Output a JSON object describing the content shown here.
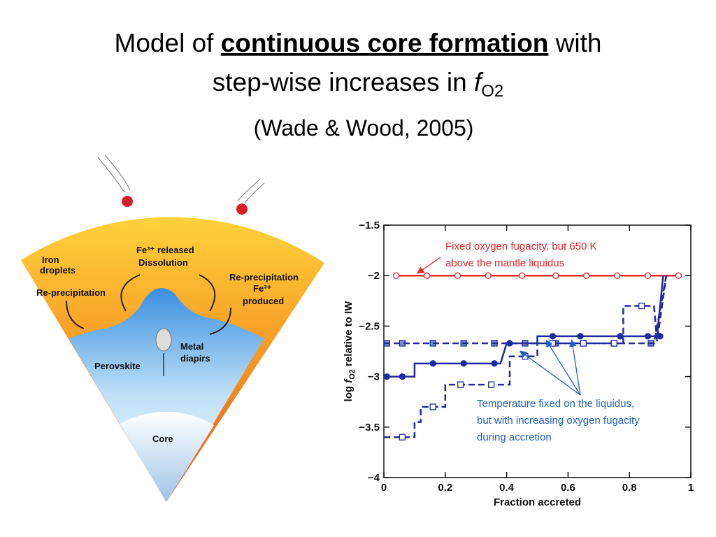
{
  "title": {
    "line1_start": "Model of ",
    "line1_emph": "continuous core formation",
    "line1_end": " with",
    "line2_start": "step-wise increases in ",
    "line2_f": "f",
    "line2_sub": "O2"
  },
  "subtitle": "(Wade & Wood, 2005)",
  "diagram": {
    "labels": [
      "Iron",
      "droplets",
      "Fe³⁺ released",
      "Dissolution",
      "Re-precipitation",
      "Re-precipitation",
      "Fe³⁺",
      "produced",
      "Metal",
      "diapirs",
      "Perovskite",
      "Core"
    ]
  },
  "chart_data": {
    "type": "line",
    "xlabel": "Fraction accreted",
    "ylabel": {
      "start": "log ",
      "f": "f",
      "sub": "O2",
      "end": " relative to IW"
    },
    "xlim": [
      0,
      1
    ],
    "xticks": [
      0,
      0.2,
      0.4,
      0.6,
      0.8,
      1
    ],
    "ylim": [
      -4,
      -1.5
    ],
    "yticks": [
      {
        "value": -4,
        "label": "−4"
      },
      {
        "value": -3.5,
        "label": "−3.5"
      },
      {
        "value": -3,
        "label": "−3"
      },
      {
        "value": -2.5,
        "label": "−2.5"
      },
      {
        "value": -2,
        "label": "−2"
      },
      {
        "value": -1.5,
        "label": "−1.5"
      }
    ],
    "series": [
      {
        "color": "#e8262b",
        "dashed": false,
        "marker": "open-circle",
        "x": [
          0.04,
          0.14,
          0.24,
          0.34,
          0.45,
          0.56,
          0.66,
          0.76,
          0.86,
          0.96
        ],
        "values": [
          -2,
          -2,
          -2,
          -2,
          -2,
          -2,
          -2,
          -2,
          -2,
          -2
        ]
      },
      {
        "color": "#1f2aa0",
        "dashed": false,
        "marker": "filled-circle",
        "x": [
          0,
          0.1,
          0.1,
          0.38,
          0.4,
          0.5,
          0.5,
          0.89,
          0.91
        ],
        "values": [
          -3,
          -3,
          -2.87,
          -2.87,
          -2.67,
          -2.67,
          -2.6,
          -2.6,
          -2
        ],
        "marker_x": [
          0.01,
          0.06,
          0.16,
          0.26,
          0.36,
          0.41,
          0.55,
          0.64,
          0.77,
          0.86,
          0.9
        ],
        "marker_values": [
          -3,
          -3,
          -2.87,
          -2.87,
          -2.87,
          -2.67,
          -2.6,
          -2.6,
          -2.6,
          -2.6,
          -2.6
        ]
      },
      {
        "color": "#1f2aa0",
        "dashed": true,
        "marker": "half-square",
        "x": [
          0,
          0.88,
          0.92
        ],
        "values": [
          -2.67,
          -2.67,
          -2
        ],
        "marker_x": [
          0.01,
          0.06,
          0.16,
          0.26,
          0.36,
          0.46,
          0.56,
          0.65,
          0.75,
          0.87
        ],
        "marker_values": [
          -2.67,
          -2.67,
          -2.67,
          -2.67,
          -2.67,
          -2.67,
          -2.67,
          -2.67,
          -2.67,
          -2.67
        ]
      },
      {
        "color": "#1f2aa0",
        "dashed": true,
        "marker": "open-square",
        "x": [
          0,
          0.1,
          0.1,
          0.12,
          0.12,
          0.2,
          0.2,
          0.41,
          0.41,
          0.5,
          0.5,
          0.78,
          0.78,
          0.88,
          0.89,
          0.92
        ],
        "values": [
          -3.6,
          -3.6,
          -3.45,
          -3.45,
          -3.3,
          -3.3,
          -3.08,
          -3.08,
          -2.8,
          -2.8,
          -2.67,
          -2.67,
          -2.3,
          -2.3,
          -2.65,
          -2
        ],
        "marker_x": [
          0.06,
          0.16,
          0.25,
          0.35,
          0.46,
          0.55,
          0.65,
          0.75,
          0.84
        ],
        "marker_values": [
          -3.6,
          -3.3,
          -3.08,
          -3.08,
          -2.8,
          -2.67,
          -2.67,
          -2.67,
          -2.3
        ]
      }
    ],
    "annotations": [
      {
        "color": "#e8262b",
        "lines": [
          "Fixed oxygen fugacity, but 650 K",
          "above the mantle liquidus"
        ]
      },
      {
        "color": "#1f5fc8",
        "lines": [
          "Temperature fixed on the liquidus,",
          "but with increasing oxygen fugacity",
          "during accretion"
        ]
      }
    ]
  }
}
